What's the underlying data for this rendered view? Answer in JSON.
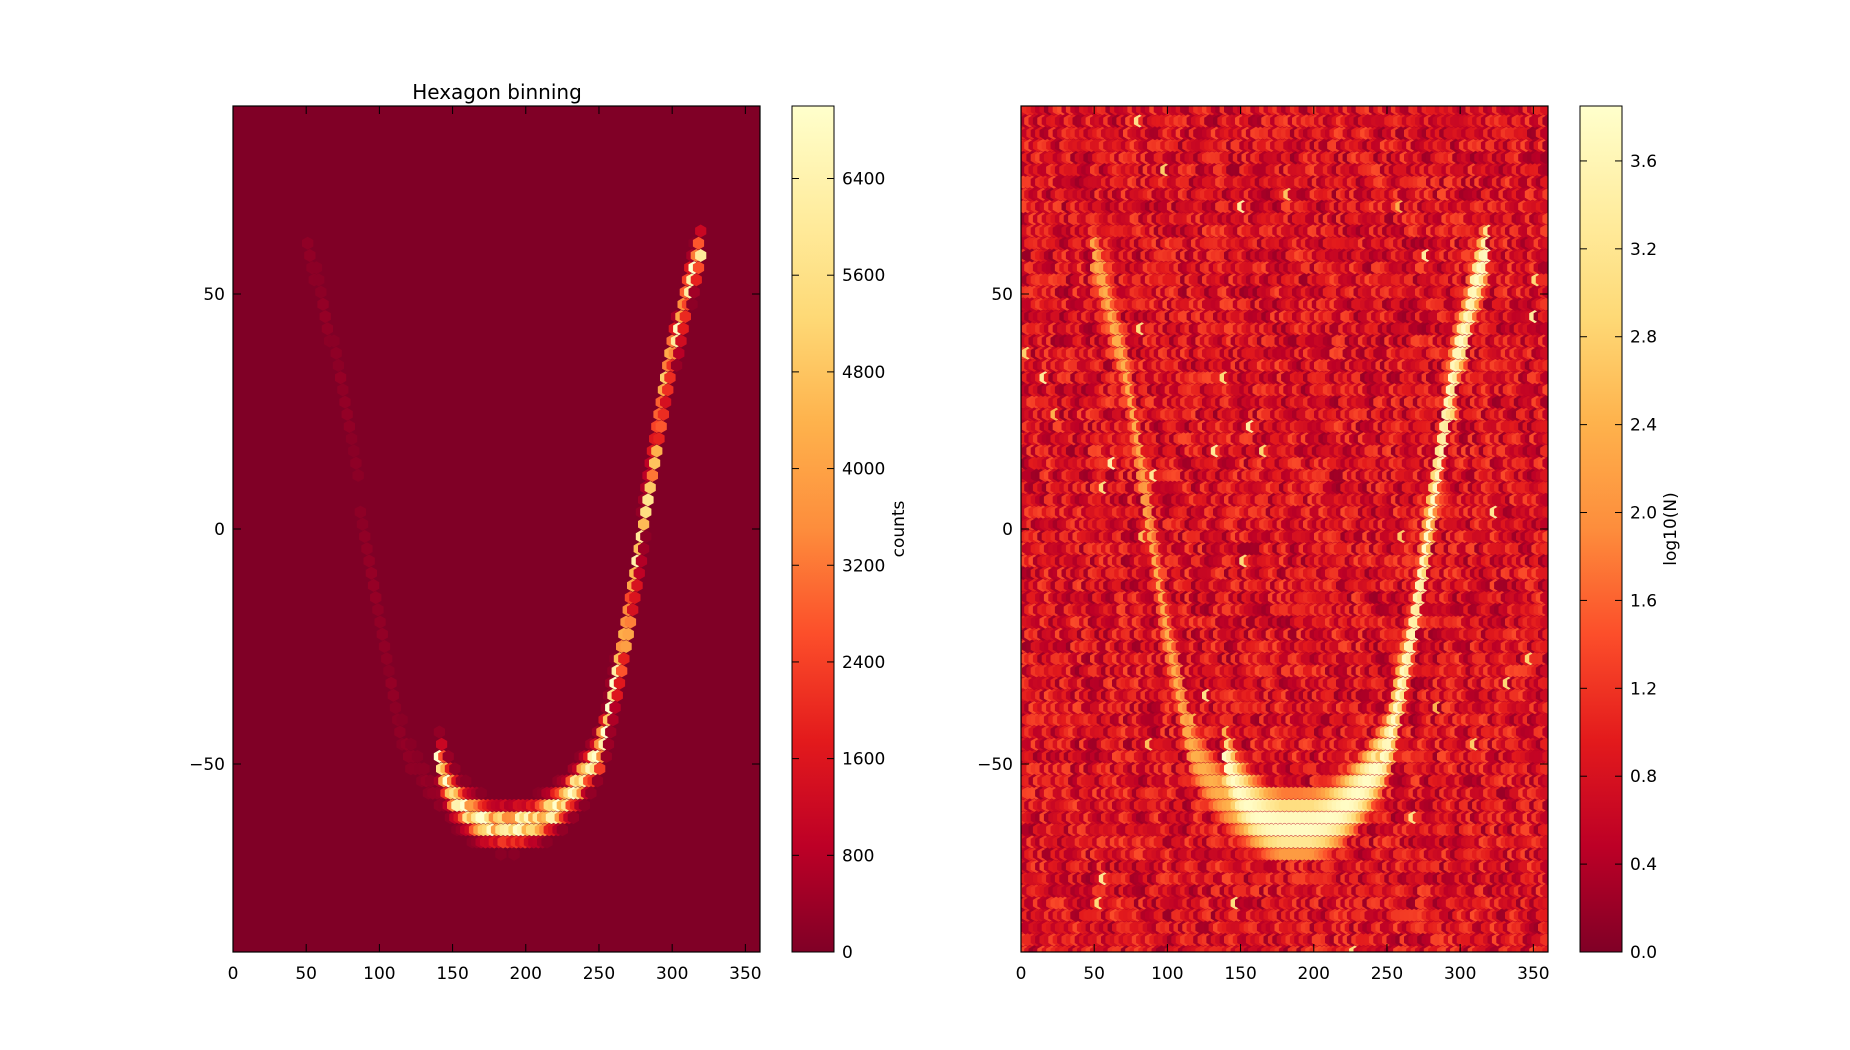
{
  "chart_data": [
    {
      "type": "heatmap",
      "subtype": "hexbin",
      "title": "Hexagon binning",
      "xlabel": "",
      "ylabel": "",
      "xlim": [
        0,
        360
      ],
      "ylim": [
        -90,
        90
      ],
      "x_ticks": [
        "0",
        "50",
        "100",
        "150",
        "200",
        "250",
        "300",
        "350"
      ],
      "y_ticks": [
        "50",
        "0",
        "−50"
      ],
      "grid": false,
      "colormap": "YlOrRd_r",
      "colorbar": {
        "label": "counts",
        "range": [
          0,
          7000
        ],
        "ticks": [
          "0",
          "800",
          "1600",
          "2400",
          "3200",
          "4000",
          "4800",
          "5600",
          "6400"
        ]
      },
      "feature": {
        "description_points_lon_lat_count": [
          [
            140,
            -48,
            600
          ],
          [
            150,
            -56,
            1200
          ],
          [
            160,
            -60,
            3000
          ],
          [
            170,
            -62,
            2000
          ],
          [
            180,
            -63,
            2200
          ],
          [
            190,
            -63,
            2000
          ],
          [
            200,
            -63,
            2000
          ],
          [
            210,
            -62,
            2000
          ],
          [
            220,
            -60,
            2500
          ],
          [
            230,
            -57,
            3000
          ],
          [
            240,
            -53,
            3500
          ],
          [
            250,
            -48,
            4000
          ],
          [
            255,
            -43,
            4500
          ],
          [
            260,
            -35,
            5000
          ],
          [
            265,
            -28,
            5600
          ],
          [
            270,
            -20,
            6000
          ],
          [
            275,
            -10,
            6800
          ],
          [
            280,
            0,
            5500
          ],
          [
            285,
            10,
            4500
          ],
          [
            290,
            20,
            3500
          ],
          [
            295,
            30,
            2500
          ],
          [
            300,
            38,
            2000
          ],
          [
            305,
            42,
            1500
          ],
          [
            310,
            50,
            800
          ],
          [
            320,
            60,
            300
          ]
        ]
      }
    },
    {
      "type": "heatmap",
      "subtype": "hexbin",
      "title": "",
      "xlabel": "",
      "ylabel": "",
      "xlim": [
        0,
        360
      ],
      "ylim": [
        -90,
        90
      ],
      "x_ticks": [
        "0",
        "50",
        "100",
        "150",
        "200",
        "250",
        "300",
        "350"
      ],
      "y_ticks": [
        "50",
        "0",
        "−50"
      ],
      "grid": false,
      "colormap": "YlOrRd_r",
      "colorbar": {
        "label": "log10(N)",
        "range": [
          0,
          3.85
        ],
        "ticks": [
          "0.0",
          "0.4",
          "0.8",
          "1.2",
          "1.6",
          "2.0",
          "2.4",
          "2.8",
          "3.2",
          "3.6"
        ]
      }
    }
  ]
}
